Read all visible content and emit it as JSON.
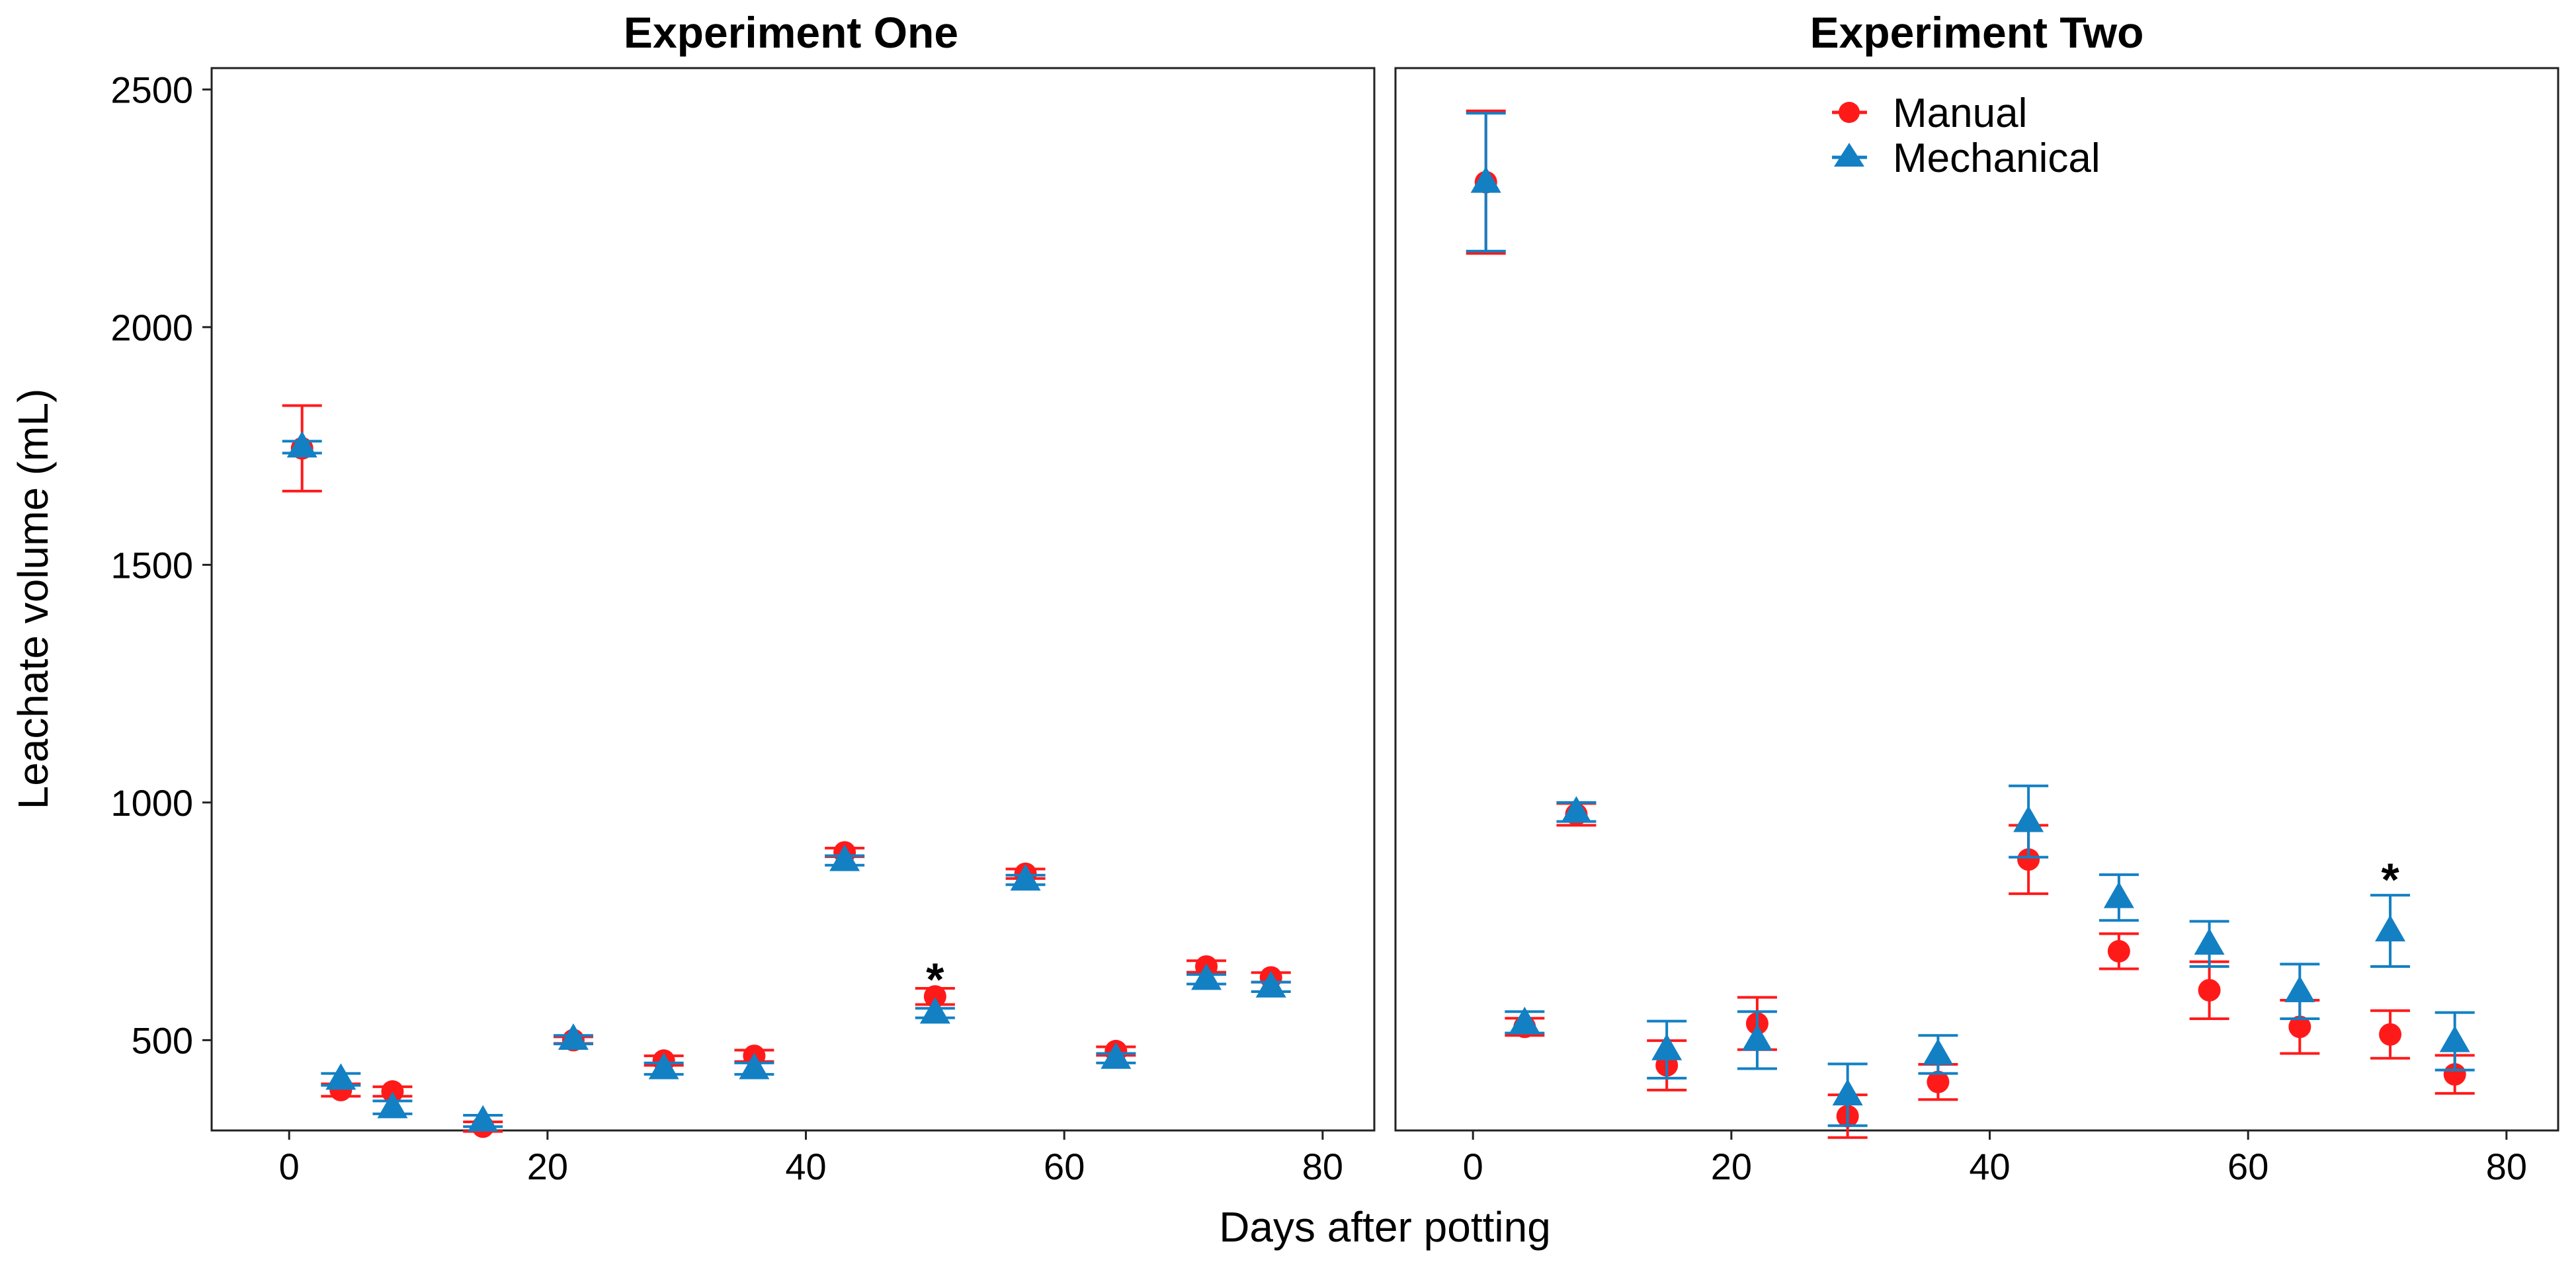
{
  "chart_data": {
    "type": "scatter",
    "xlabel": "Days after potting",
    "ylabel": "Leachate volume (mL)",
    "xlim": [
      -6,
      84
    ],
    "ylim": [
      310,
      2545
    ],
    "x_ticks": [
      "0",
      "20",
      "40",
      "60",
      "80"
    ],
    "y_ticks": [
      "500",
      "1000",
      "1500",
      "2000",
      "2500"
    ],
    "colors": {
      "manual": "#ff1a1a",
      "mechanical": "#1380c4"
    },
    "legend": {
      "position": "top-right-inside",
      "panel": 2,
      "entries": [
        "Manual",
        "Mechanical"
      ]
    },
    "panels": [
      {
        "title": "Experiment One",
        "series": [
          {
            "name": "Manual",
            "marker": "circle",
            "points": [
              {
                "x": 1,
                "y": 1745,
                "lo": 1655,
                "hi": 1835
              },
              {
                "x": 4,
                "y": 395,
                "lo": 382,
                "hi": 408
              },
              {
                "x": 8,
                "y": 392,
                "lo": 382,
                "hi": 402
              },
              {
                "x": 15,
                "y": 318,
                "lo": 308,
                "hi": 328
              },
              {
                "x": 22,
                "y": 500,
                "lo": 493,
                "hi": 507
              },
              {
                "x": 29,
                "y": 457,
                "lo": 447,
                "hi": 467
              },
              {
                "x": 36,
                "y": 467,
                "lo": 455,
                "hi": 479
              },
              {
                "x": 43,
                "y": 895,
                "lo": 886,
                "hi": 904
              },
              {
                "x": 50,
                "y": 592,
                "lo": 575,
                "hi": 609
              },
              {
                "x": 57,
                "y": 850,
                "lo": 840,
                "hi": 860
              },
              {
                "x": 64,
                "y": 477,
                "lo": 468,
                "hi": 486
              },
              {
                "x": 71,
                "y": 655,
                "lo": 643,
                "hi": 667
              },
              {
                "x": 76,
                "y": 632,
                "lo": 622,
                "hi": 642
              }
            ]
          },
          {
            "name": "Mechanical",
            "marker": "triangle",
            "points": [
              {
                "x": 1,
                "y": 1748,
                "lo": 1735,
                "hi": 1760
              },
              {
                "x": 4,
                "y": 418,
                "lo": 405,
                "hi": 430
              },
              {
                "x": 8,
                "y": 358,
                "lo": 345,
                "hi": 372
              },
              {
                "x": 15,
                "y": 330,
                "lo": 318,
                "hi": 342
              },
              {
                "x": 22,
                "y": 502,
                "lo": 492,
                "hi": 510
              },
              {
                "x": 29,
                "y": 440,
                "lo": 428,
                "hi": 452
              },
              {
                "x": 36,
                "y": 440,
                "lo": 428,
                "hi": 452
              },
              {
                "x": 43,
                "y": 878,
                "lo": 868,
                "hi": 888
              },
              {
                "x": 50,
                "y": 557,
                "lo": 547,
                "hi": 567
              },
              {
                "x": 57,
                "y": 837,
                "lo": 827,
                "hi": 847
              },
              {
                "x": 64,
                "y": 462,
                "lo": 452,
                "hi": 472
              },
              {
                "x": 71,
                "y": 628,
                "lo": 618,
                "hi": 638
              },
              {
                "x": 76,
                "y": 612,
                "lo": 602,
                "hi": 622
              }
            ]
          }
        ],
        "annotations": [
          {
            "text": "*",
            "x": 50,
            "y": 650
          }
        ]
      },
      {
        "title": "Experiment Two",
        "series": [
          {
            "name": "Manual",
            "marker": "circle",
            "points": [
              {
                "x": 1,
                "y": 2305,
                "lo": 2155,
                "hi": 2455
              },
              {
                "x": 4,
                "y": 528,
                "lo": 510,
                "hi": 546
              },
              {
                "x": 8,
                "y": 975,
                "lo": 952,
                "hi": 998
              },
              {
                "x": 15,
                "y": 447,
                "lo": 395,
                "hi": 499
              },
              {
                "x": 22,
                "y": 535,
                "lo": 480,
                "hi": 590
              },
              {
                "x": 29,
                "y": 340,
                "lo": 295,
                "hi": 385
              },
              {
                "x": 36,
                "y": 412,
                "lo": 375,
                "hi": 449
              },
              {
                "x": 43,
                "y": 880,
                "lo": 808,
                "hi": 952
              },
              {
                "x": 50,
                "y": 687,
                "lo": 650,
                "hi": 724
              },
              {
                "x": 57,
                "y": 605,
                "lo": 545,
                "hi": 665
              },
              {
                "x": 64,
                "y": 528,
                "lo": 472,
                "hi": 584
              },
              {
                "x": 71,
                "y": 512,
                "lo": 462,
                "hi": 562
              },
              {
                "x": 76,
                "y": 428,
                "lo": 388,
                "hi": 468
              }
            ]
          },
          {
            "name": "Mechanical",
            "marker": "triangle",
            "points": [
              {
                "x": 1,
                "y": 2305,
                "lo": 2160,
                "hi": 2450
              },
              {
                "x": 4,
                "y": 537,
                "lo": 515,
                "hi": 560
              },
              {
                "x": 8,
                "y": 980,
                "lo": 960,
                "hi": 1000
              },
              {
                "x": 15,
                "y": 480,
                "lo": 420,
                "hi": 540
              },
              {
                "x": 22,
                "y": 500,
                "lo": 440,
                "hi": 560
              },
              {
                "x": 29,
                "y": 385,
                "lo": 320,
                "hi": 450
              },
              {
                "x": 36,
                "y": 470,
                "lo": 430,
                "hi": 510
              },
              {
                "x": 43,
                "y": 960,
                "lo": 885,
                "hi": 1035
              },
              {
                "x": 50,
                "y": 800,
                "lo": 752,
                "hi": 848
              },
              {
                "x": 57,
                "y": 702,
                "lo": 655,
                "hi": 750
              },
              {
                "x": 64,
                "y": 602,
                "lo": 545,
                "hi": 660
              },
              {
                "x": 71,
                "y": 730,
                "lo": 655,
                "hi": 805
              },
              {
                "x": 76,
                "y": 497,
                "lo": 437,
                "hi": 558
              }
            ]
          }
        ],
        "annotations": [
          {
            "text": "*",
            "x": 71,
            "y": 860
          }
        ]
      }
    ]
  }
}
